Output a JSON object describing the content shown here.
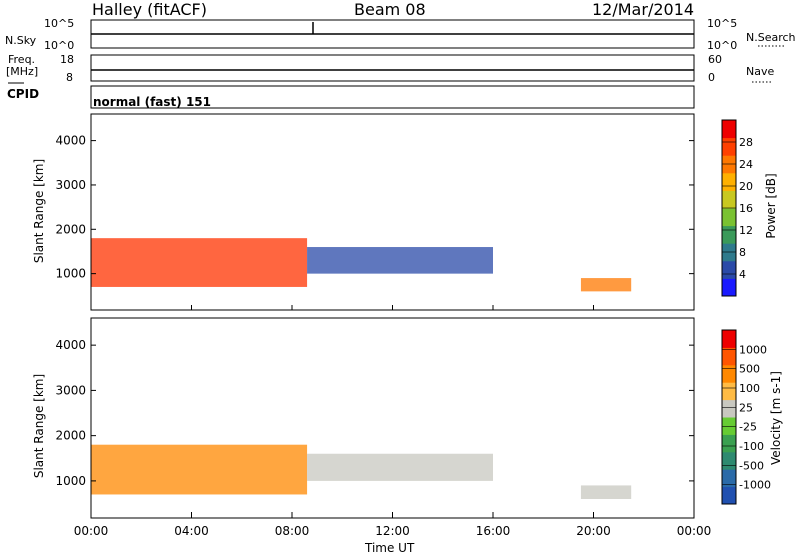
{
  "header": {
    "station": "Halley (fitACF)",
    "beam": "Beam 08",
    "date": "12/Mar/2014"
  },
  "nsky_panel": {
    "left_label": "N.Sky",
    "left_ticks": [
      "10^5",
      "10^0"
    ],
    "right_label": "N.Search",
    "right_ticks": [
      "10^5",
      "10^0"
    ]
  },
  "freq_panel": {
    "left_label_line1": "Freq.",
    "left_label_line2": "[MHz]",
    "left_ticks": [
      "18",
      "8"
    ],
    "right_label": "Nave",
    "right_ticks": [
      "60",
      "0"
    ]
  },
  "cpid": {
    "label": "CPID",
    "value": "normal (fast) 151"
  },
  "chart_data": [
    {
      "type": "heatmap",
      "name_label": "Power",
      "ylabel": "Slant Range [km]",
      "colorbar_label": "Power [dB]",
      "xlim_hours": [
        0,
        24
      ],
      "ylim_km": [
        180,
        4600
      ],
      "yticks": [
        1000,
        2000,
        3000,
        4000
      ],
      "colorbar": {
        "ticks": [
          "28",
          "24",
          "20",
          "16",
          "12",
          "8",
          "4"
        ],
        "colors": [
          "#1a1aff",
          "#2a4aa8",
          "#2e7a8c",
          "#3a9a5a",
          "#7ac232",
          "#c8c820",
          "#ffb000",
          "#ff7800",
          "#ff4000",
          "#ee0000"
        ]
      },
      "regions": [
        {
          "t0": 0.0,
          "t1": 8.6,
          "r0": 700,
          "r1": 1800,
          "color": "#ff3300"
        },
        {
          "t0": 8.6,
          "t1": 16.0,
          "r0": 1000,
          "r1": 1600,
          "color": "#2a4aa8"
        },
        {
          "t0": 19.5,
          "t1": 21.5,
          "r0": 600,
          "r1": 900,
          "color": "#ff7800"
        }
      ]
    },
    {
      "type": "heatmap",
      "name_label": "Velocity",
      "ylabel": "Slant Range [km]",
      "colorbar_label": "Velocity [m s-1]",
      "xlim_hours": [
        0,
        24
      ],
      "ylim_km": [
        180,
        4600
      ],
      "yticks": [
        1000,
        2000,
        3000,
        4000
      ],
      "colorbar": {
        "ticks": [
          "1000",
          "500",
          "100",
          "25",
          "-25",
          "-100",
          "-500",
          "-1000"
        ],
        "colors": [
          "#2050b0",
          "#2a6aa8",
          "#2e8a70",
          "#3aa050",
          "#66cc33",
          "#c8c8c0",
          "#ffbb44",
          "#ff8800",
          "#ff5500",
          "#ee0000"
        ]
      },
      "regions": [
        {
          "t0": 0.0,
          "t1": 8.6,
          "r0": 700,
          "r1": 1800,
          "color": "#ff8800"
        },
        {
          "t0": 8.6,
          "t1": 16.0,
          "r0": 1000,
          "r1": 1600,
          "color": "#c8c8c0"
        },
        {
          "t0": 19.5,
          "t1": 21.5,
          "r0": 600,
          "r1": 900,
          "color": "#c8c8c0"
        }
      ]
    }
  ],
  "xaxis": {
    "ticks": [
      "00:00",
      "04:00",
      "08:00",
      "12:00",
      "16:00",
      "20:00",
      "00:00"
    ],
    "label": "Time UT"
  }
}
